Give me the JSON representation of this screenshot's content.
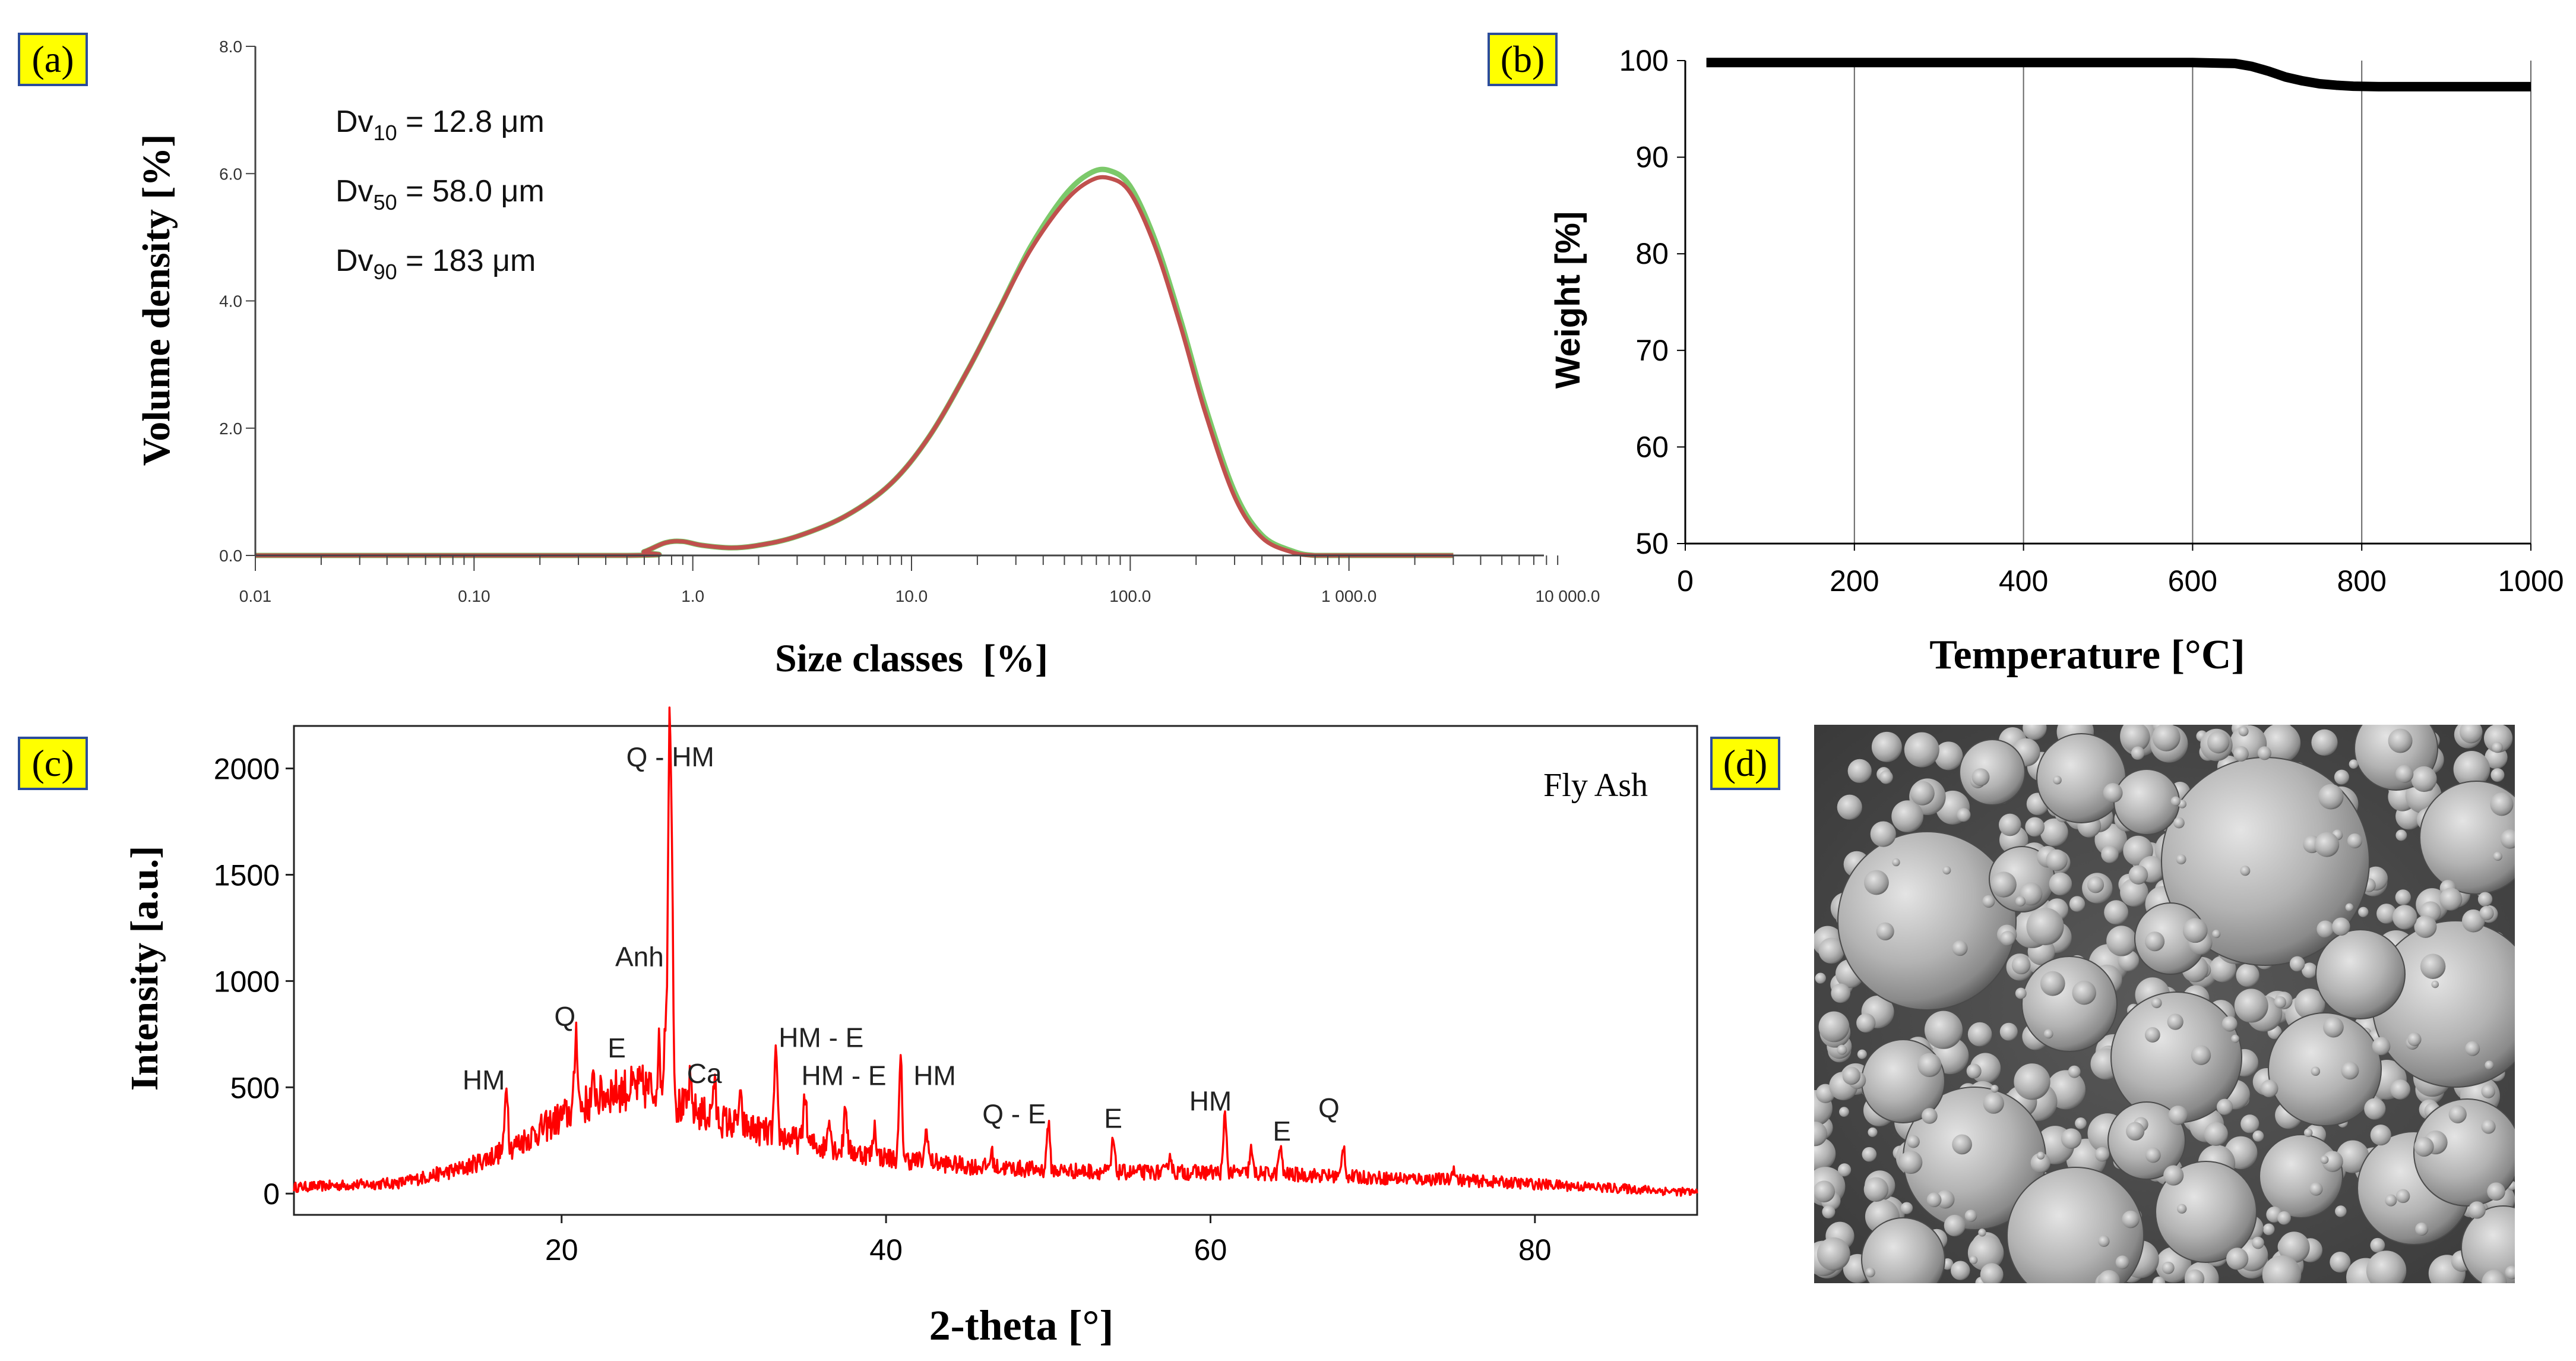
{
  "chart_data": [
    {
      "panel": "a",
      "type": "line",
      "panel_label": "(a)",
      "xlabel": "Size classes  [%]",
      "ylabel": "Volume density [%]",
      "xscale": "log",
      "xlim": [
        0.01,
        10000
      ],
      "ylim": [
        0,
        8
      ],
      "xticks": [
        "0.01",
        "0.10",
        "1.0",
        "10.0",
        "100.0",
        "1 000.0",
        "10 000.0"
      ],
      "yticks": [
        "0.0",
        "2.0",
        "4.0",
        "6.0",
        "8.0"
      ],
      "annotations": [
        {
          "base": "Dv",
          "sub": "10",
          "rest": " = 12.8 μm"
        },
        {
          "base": "Dv",
          "sub": "50",
          "rest": " = 58.0 μm"
        },
        {
          "base": "Dv",
          "sub": "90",
          "rest": " = 183 μm"
        }
      ],
      "series": [
        {
          "color": "#7cc96a",
          "x": [
            0.01,
            0.5,
            0.6,
            0.75,
            0.9,
            1.1,
            1.5,
            2,
            3,
            5,
            8,
            12,
            18,
            25,
            35,
            50,
            65,
            80,
            100,
            130,
            170,
            220,
            300,
            400,
            550,
            700,
            1000,
            3000
          ],
          "y": [
            0,
            0,
            0.06,
            0.2,
            0.22,
            0.16,
            0.12,
            0.16,
            0.3,
            0.62,
            1.12,
            1.86,
            2.9,
            3.85,
            4.85,
            5.65,
            6.0,
            6.05,
            5.8,
            4.95,
            3.7,
            2.35,
            1.0,
            0.32,
            0.07,
            0.0,
            0,
            0
          ]
        },
        {
          "color": "#c0504d",
          "x": [
            0.01,
            0.5,
            0.6,
            0.75,
            0.9,
            1.1,
            1.5,
            2,
            3,
            5,
            8,
            12,
            18,
            25,
            35,
            50,
            65,
            80,
            100,
            130,
            170,
            220,
            300,
            400,
            550,
            700,
            1000,
            3000
          ],
          "y": [
            0,
            0,
            0.06,
            0.2,
            0.22,
            0.16,
            0.12,
            0.16,
            0.3,
            0.62,
            1.12,
            1.86,
            2.9,
            3.85,
            4.8,
            5.55,
            5.88,
            5.93,
            5.7,
            4.85,
            3.6,
            2.25,
            0.92,
            0.28,
            0.05,
            0.0,
            0,
            0
          ]
        }
      ]
    },
    {
      "panel": "b",
      "type": "line",
      "panel_label": "(b)",
      "xlabel": "Temperature [°C]",
      "ylabel": "Weight [%]",
      "xlim": [
        0,
        1000
      ],
      "ylim": [
        50,
        100
      ],
      "xticks": [
        "0",
        "200",
        "400",
        "600",
        "800",
        "1000"
      ],
      "yticks": [
        "50",
        "60",
        "70",
        "80",
        "90",
        "100"
      ],
      "grid": "vertical",
      "series": [
        {
          "color": "#000000",
          "x": [
            25,
            200,
            400,
            600,
            650,
            670,
            690,
            710,
            730,
            750,
            770,
            790,
            820,
            900,
            1000
          ],
          "y": [
            99.8,
            99.8,
            99.8,
            99.8,
            99.7,
            99.4,
            98.9,
            98.3,
            97.9,
            97.6,
            97.45,
            97.35,
            97.3,
            97.3,
            97.3
          ]
        }
      ]
    },
    {
      "panel": "c",
      "type": "line",
      "panel_label": "(c)",
      "legend_text": "Fly Ash",
      "xlabel": "2-theta [°]",
      "ylabel": "Intensity [a.u.]",
      "xlim": [
        3.5,
        90
      ],
      "ylim": [
        -100,
        2200
      ],
      "xticks": [
        "20",
        "40",
        "60",
        "80"
      ],
      "yticks": [
        "0",
        "500",
        "1000",
        "1500",
        "2000"
      ],
      "baseline": [
        [
          3.5,
          30
        ],
        [
          10,
          50
        ],
        [
          14,
          120
        ],
        [
          17,
          220
        ],
        [
          20,
          360
        ],
        [
          23,
          480
        ],
        [
          25,
          500
        ],
        [
          26,
          480
        ],
        [
          27,
          420
        ],
        [
          30,
          340
        ],
        [
          33,
          280
        ],
        [
          36,
          220
        ],
        [
          40,
          170
        ],
        [
          45,
          130
        ],
        [
          50,
          110
        ],
        [
          55,
          100
        ],
        [
          60,
          100
        ],
        [
          65,
          90
        ],
        [
          70,
          75
        ],
        [
          75,
          65
        ],
        [
          80,
          45
        ],
        [
          85,
          25
        ],
        [
          90,
          5
        ]
      ],
      "peaks": [
        [
          16.6,
          320
        ],
        [
          20.9,
          380
        ],
        [
          22,
          80
        ],
        [
          26.0,
          200
        ],
        [
          26.4,
          350
        ],
        [
          26.65,
          1550
        ],
        [
          26.8,
          850
        ],
        [
          27.9,
          120
        ],
        [
          29.4,
          170
        ],
        [
          31.0,
          120
        ],
        [
          33.2,
          360
        ],
        [
          35.0,
          240
        ],
        [
          36.5,
          160
        ],
        [
          37.5,
          230
        ],
        [
          39.3,
          140
        ],
        [
          40.9,
          460
        ],
        [
          42.5,
          160
        ],
        [
          46.5,
          70
        ],
        [
          50.0,
          230
        ],
        [
          54.0,
          150
        ],
        [
          57.5,
          90
        ],
        [
          60.9,
          280
        ],
        [
          62.5,
          110
        ],
        [
          64.3,
          130
        ],
        [
          68.2,
          150
        ],
        [
          75,
          60
        ]
      ],
      "series": [
        {
          "color": "#ff0000"
        }
      ],
      "peak_labels": [
        {
          "text": "HM",
          "x": 15.2,
          "y": 490
        },
        {
          "text": "Q",
          "x": 20.2,
          "y": 790
        },
        {
          "text": "E",
          "x": 23.4,
          "y": 640
        },
        {
          "text": "Anh",
          "x": 24.8,
          "y": 1070
        },
        {
          "text": "Q - HM",
          "x": 26.7,
          "y": 2010
        },
        {
          "text": "Ca",
          "x": 28.8,
          "y": 520
        },
        {
          "text": "HM - E",
          "x": 36.0,
          "y": 690
        },
        {
          "text": "HM - E",
          "x": 37.4,
          "y": 510
        },
        {
          "text": "HM",
          "x": 43.0,
          "y": 510
        },
        {
          "text": "Q - E",
          "x": 47.9,
          "y": 330
        },
        {
          "text": "E",
          "x": 54.0,
          "y": 310
        },
        {
          "text": "HM",
          "x": 60.0,
          "y": 390
        },
        {
          "text": "E",
          "x": 64.4,
          "y": 250
        },
        {
          "text": "Q",
          "x": 67.3,
          "y": 360
        }
      ]
    }
  ],
  "panel_d": {
    "panel_label": "(d)",
    "image": "sem-micrograph-of-fly-ash-spherical-particles"
  }
}
